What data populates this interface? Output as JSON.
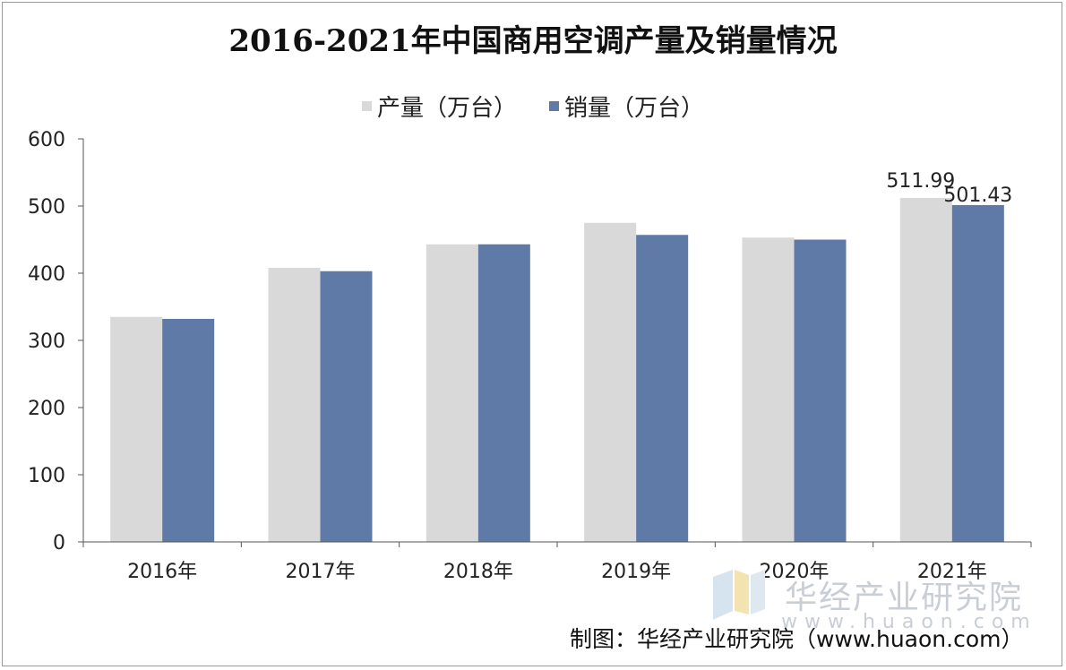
{
  "colors": {
    "production": "#d9d9d9",
    "sales": "#5f7aa6",
    "axis": "#555555",
    "text": "#222222"
  },
  "chart_data": {
    "type": "bar",
    "title": "2016-2021年中国商用空调产量及销量情况",
    "categories": [
      "2016年",
      "2017年",
      "2018年",
      "2019年",
      "2020年",
      "2021年"
    ],
    "series": [
      {
        "name": "产量（万台）",
        "values": [
          335,
          408,
          443,
          475,
          453,
          511.99
        ],
        "labels": [
          "",
          "",
          "",
          "",
          "",
          "511.99"
        ]
      },
      {
        "name": "销量（万台）",
        "values": [
          332,
          403,
          443,
          457,
          450,
          501.43
        ],
        "labels": [
          "",
          "",
          "",
          "",
          "",
          "501.43"
        ]
      }
    ],
    "ylim": [
      0,
      600
    ],
    "yticks": [
      0,
      100,
      200,
      300,
      400,
      500,
      600
    ],
    "xlabel": "",
    "ylabel": "",
    "legend": "top-center",
    "grid": false
  },
  "footer": {
    "source": "制图：华经产业研究院（www.huaon.com）"
  },
  "watermark": {
    "name": "华经产业研究院",
    "url": "www.huaon.com"
  }
}
